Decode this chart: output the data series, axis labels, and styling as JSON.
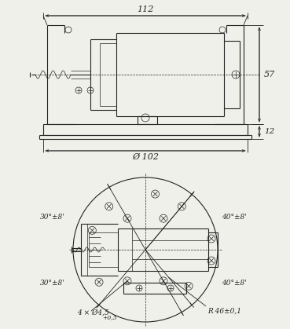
{
  "bg_color": "#f0f0eb",
  "line_color": "#222222",
  "dim_color": "#222222",
  "figure_width": 3.69,
  "figure_height": 4.19,
  "dpi": 100,
  "top_view": {
    "dim_112": "112",
    "dim_57": "57",
    "dim_12": "12",
    "dim_102": "Ø 102"
  },
  "bottom_view": {
    "dim_r46": "R 46±0,1",
    "dim_hole": "4 × Ø4,5",
    "dim_hole_tol": "+0,3",
    "angles_left_top": "30°±8'",
    "angles_left_bot": "30°±8'",
    "angles_right_top": "40°±8'",
    "angles_right_bot": "40°±8'"
  }
}
